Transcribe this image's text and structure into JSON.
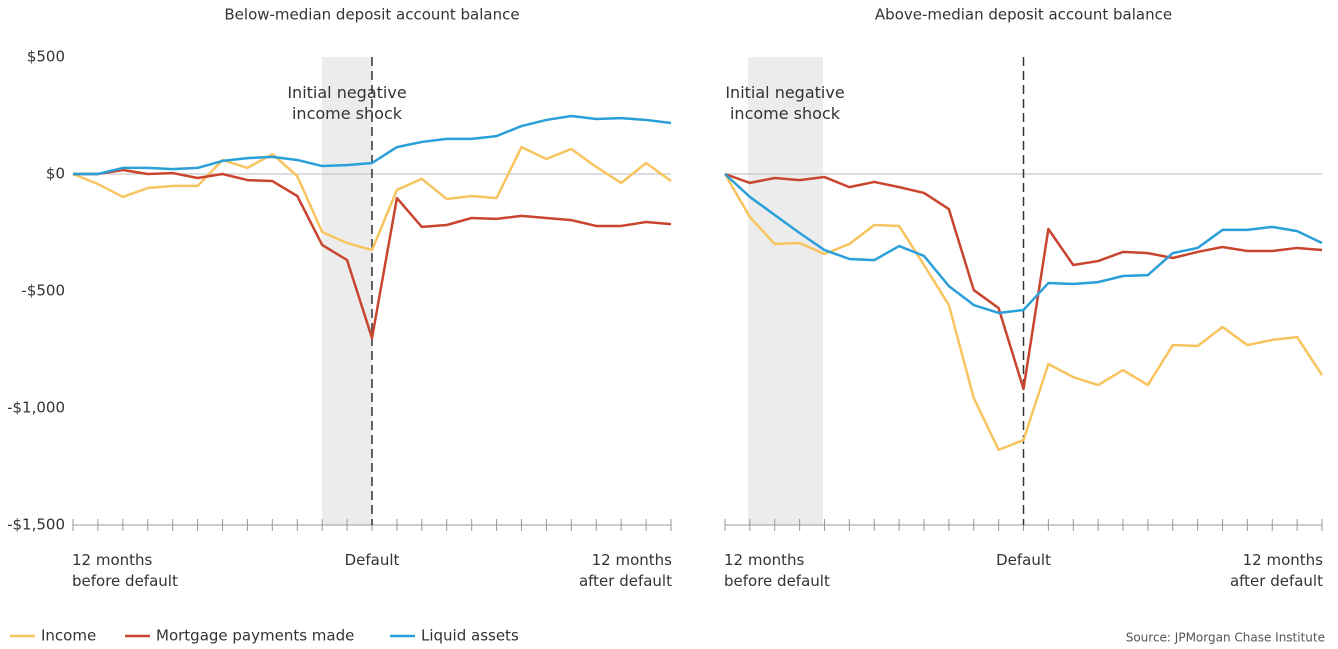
{
  "chart_data": [
    {
      "type": "line",
      "title": "Below-median deposit account balance",
      "annotation": "Initial negative\nincome shock",
      "categories": [
        "12 months\nbefore default",
        null,
        null,
        null,
        null,
        null,
        null,
        null,
        null,
        null,
        null,
        null,
        "Default",
        null,
        null,
        null,
        null,
        null,
        null,
        null,
        null,
        null,
        null,
        null,
        "12 months\nafter default"
      ],
      "ylim": [
        -1500,
        500
      ],
      "yticks": [
        {
          "value": 500,
          "label": "$500"
        },
        {
          "value": 0,
          "label": "$0"
        },
        {
          "value": -500,
          "label": "-$500"
        },
        {
          "value": -1000,
          "label": "-$1,000"
        },
        {
          "value": -1500,
          "label": "-$1,500"
        }
      ],
      "series": [
        {
          "name": "Income",
          "color": "#f8c45f",
          "values": [
            0,
            -43,
            -98,
            -60,
            -51,
            -51,
            60,
            26,
            85,
            -9,
            -248,
            -295,
            -325,
            -68,
            -21,
            -107,
            -94,
            -103,
            115,
            64,
            107,
            30,
            -38,
            47,
            -30
          ]
        },
        {
          "name": "Mortgage payments made",
          "color": "#c9452f",
          "values": [
            0,
            0,
            17,
            0,
            4,
            -17,
            0,
            -26,
            -30,
            -94,
            -303,
            -368,
            -701,
            -103,
            -226,
            -218,
            -188,
            -192,
            -179,
            -188,
            -197,
            -222,
            -222,
            -205,
            -214
          ]
        },
        {
          "name": "Liquid assets",
          "color": "#2a9fd8",
          "values": [
            0,
            0,
            26,
            26,
            21,
            26,
            56,
            68,
            73,
            60,
            34,
            38,
            47,
            115,
            137,
            150,
            150,
            162,
            205,
            231,
            248,
            235,
            239,
            231,
            218
          ]
        }
      ]
    },
    {
      "type": "line",
      "title": "Above-median deposit account balance",
      "annotation": "Initial negative\nincome shock",
      "categories": [
        "12 months\nbefore default",
        null,
        null,
        null,
        null,
        null,
        null,
        null,
        null,
        null,
        null,
        null,
        "Default",
        null,
        null,
        null,
        null,
        null,
        null,
        null,
        null,
        null,
        null,
        null,
        "12 months\nafter default"
      ],
      "ylim": [
        -1500,
        500
      ],
      "series": [
        {
          "color": "#f8c45f",
          "values": [
            0,
            -184,
            -299,
            -295,
            -342,
            -299,
            -218,
            -222,
            -389,
            -560,
            -957,
            -1179,
            -1137,
            -812,
            -868,
            -902,
            -838,
            -902,
            -731,
            -735,
            -654,
            -731,
            -709,
            -697,
            -859
          ]
        },
        {
          "color": "#c9452f",
          "values": [
            0,
            -38,
            -17,
            -26,
            -13,
            -56,
            -34,
            -56,
            -81,
            -150,
            -496,
            -573,
            -919,
            -235,
            -389,
            -372,
            -333,
            -338,
            -359,
            -333,
            -312,
            -329,
            -329,
            -316,
            -325
          ]
        },
        {
          "color": "#2a9fd8",
          "values": [
            0,
            -98,
            -175,
            -252,
            -325,
            -363,
            -368,
            -308,
            -350,
            -479,
            -560,
            -594,
            -581,
            -466,
            -470,
            -462,
            -436,
            -432,
            -338,
            -316,
            -239,
            -239,
            -226,
            -244,
            -295
          ]
        }
      ]
    }
  ],
  "source": "Source: JPMorgan Chase Institute"
}
